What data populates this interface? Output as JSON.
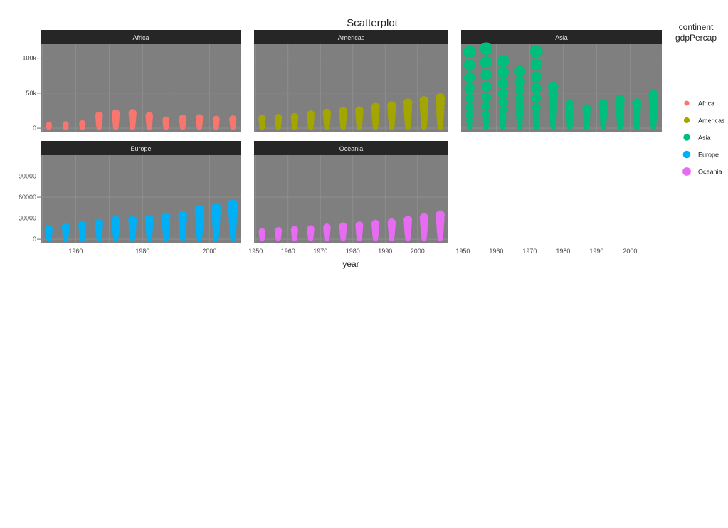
{
  "chart_data": {
    "type": "scatter",
    "title": "Scatterplot",
    "xlabel": "year",
    "ylabel": "",
    "legend": {
      "title_lines": [
        "continent",
        "gdpPercap"
      ],
      "placement": "right",
      "entries": [
        {
          "name": "Africa",
          "color": "#f8766d"
        },
        {
          "name": "Americas",
          "color": "#a3a500"
        },
        {
          "name": "Asia",
          "color": "#00bf7d"
        },
        {
          "name": "Europe",
          "color": "#00b0f6"
        },
        {
          "name": "Oceania",
          "color": "#e76bf3"
        }
      ]
    },
    "x_range": [
      1949.5,
      2009.5
    ],
    "x_ticks": [
      1950,
      1960,
      1970,
      1980,
      1990,
      2000
    ],
    "x_tick_labels_row2": [
      "1960",
      "1980",
      "2000"
    ],
    "top_row_y": {
      "range": [
        -5000,
        120000
      ],
      "ticks": [
        0,
        50000,
        100000
      ],
      "labels": [
        "0",
        "50k",
        "100k"
      ]
    },
    "bottom_row_y": {
      "range": [
        -5000,
        120000
      ],
      "ticks": [
        0,
        30000,
        60000,
        90000
      ],
      "labels": [
        "0",
        "30000",
        "60000",
        "90000"
      ]
    },
    "years": [
      1952,
      1957,
      1962,
      1967,
      1972,
      1977,
      1982,
      1987,
      1992,
      1997,
      2002,
      2007
    ],
    "grid": true,
    "facets": [
      {
        "name": "Africa",
        "color": "#f8766d",
        "maxes": [
          4700,
          5500,
          6800,
          18000,
          21000,
          21500,
          17500,
          11500,
          14000,
          14500,
          12500,
          13200
        ]
      },
      {
        "name": "Americas",
        "color": "#a3a500",
        "maxes": [
          13900,
          14900,
          16100,
          19500,
          21800,
          24100,
          25000,
          29900,
          32000,
          35800,
          39100,
          42900
        ]
      },
      {
        "name": "Asia",
        "color": "#00bf7d",
        "maxes": [
          108400,
          113500,
          95500,
          80900,
          109300,
          59300,
          33700,
          28100,
          34900,
          40300,
          36000,
          47300
        ]
      },
      {
        "name": "Europe",
        "color": "#00b0f6",
        "maxes": [
          14700,
          17900,
          20900,
          22900,
          27200,
          26900,
          28400,
          31500,
          34000,
          41300,
          44700,
          49400
        ]
      },
      {
        "name": "Oceania",
        "color": "#e76bf3",
        "maxes": [
          10600,
          12200,
          13500,
          14500,
          16800,
          18300,
          19500,
          21900,
          23400,
          27000,
          30700,
          34400
        ]
      }
    ]
  }
}
